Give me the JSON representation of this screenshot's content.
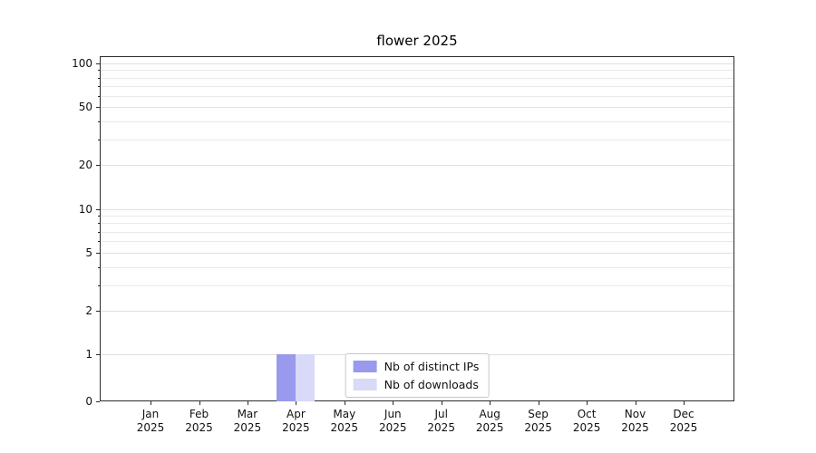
{
  "chart_data": {
    "type": "bar",
    "title": "flower 2025",
    "categories": [
      "Jan",
      "Feb",
      "Mar",
      "Apr",
      "May",
      "Jun",
      "Jul",
      "Aug",
      "Sep",
      "Oct",
      "Nov",
      "Dec"
    ],
    "year_label": "2025",
    "series": [
      {
        "key": "distinct-ips",
        "name": "Nb of distinct IPs",
        "color": "#9999ee",
        "values": [
          0,
          0,
          0,
          1,
          0,
          0,
          0,
          0,
          0,
          0,
          0,
          0
        ]
      },
      {
        "key": "downloads",
        "name": "Nb of downloads",
        "color": "#d9d9f8",
        "values": [
          0,
          0,
          0,
          1,
          0,
          0,
          0,
          0,
          0,
          0,
          0,
          0
        ]
      }
    ],
    "yticks": [
      0,
      1,
      2,
      5,
      10,
      20,
      50,
      100
    ],
    "grid_values": [
      1,
      2,
      3,
      4,
      5,
      6,
      7,
      8,
      9,
      10,
      20,
      30,
      40,
      50,
      60,
      70,
      80,
      90,
      100
    ],
    "ylim": [
      0,
      100
    ],
    "scale": "symlog",
    "grid": "minor-horizontal",
    "legend_position": "lower-center",
    "axis_color": "#2b2b2b"
  }
}
